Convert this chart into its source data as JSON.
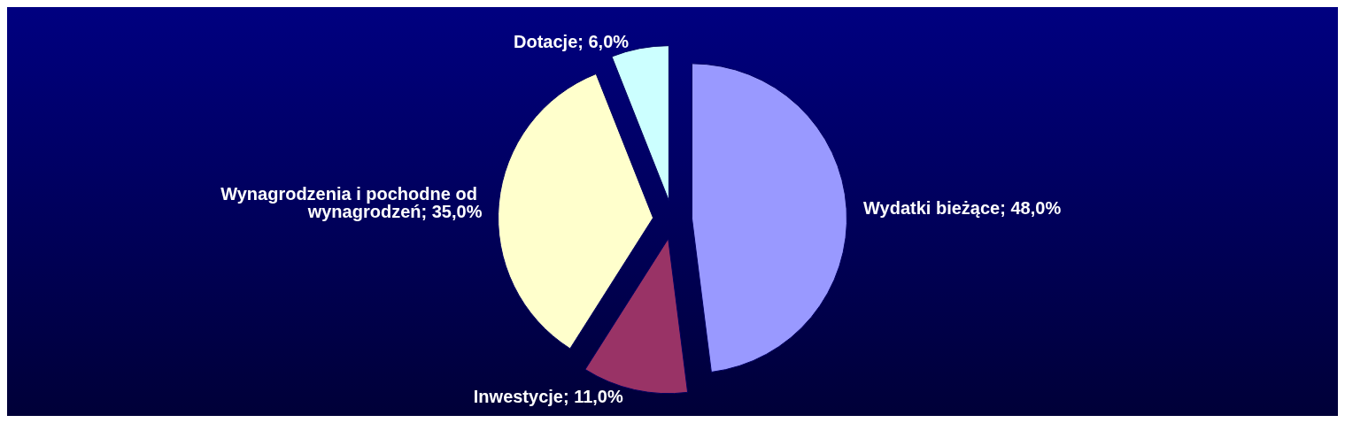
{
  "chart_data": {
    "type": "pie",
    "categories": [
      "Wydatki bieżące; 48,0%",
      "Inwestycje; 11,0%",
      "Wynagrodzenia i pochodne od wynagrodzeń; 35,0%",
      "Dotacje; 6,0%"
    ],
    "values": [
      48,
      11,
      35,
      6
    ],
    "colors": [
      "#9999ff",
      "#993366",
      "#ffffcc",
      "#ccffff"
    ],
    "legend": false
  }
}
